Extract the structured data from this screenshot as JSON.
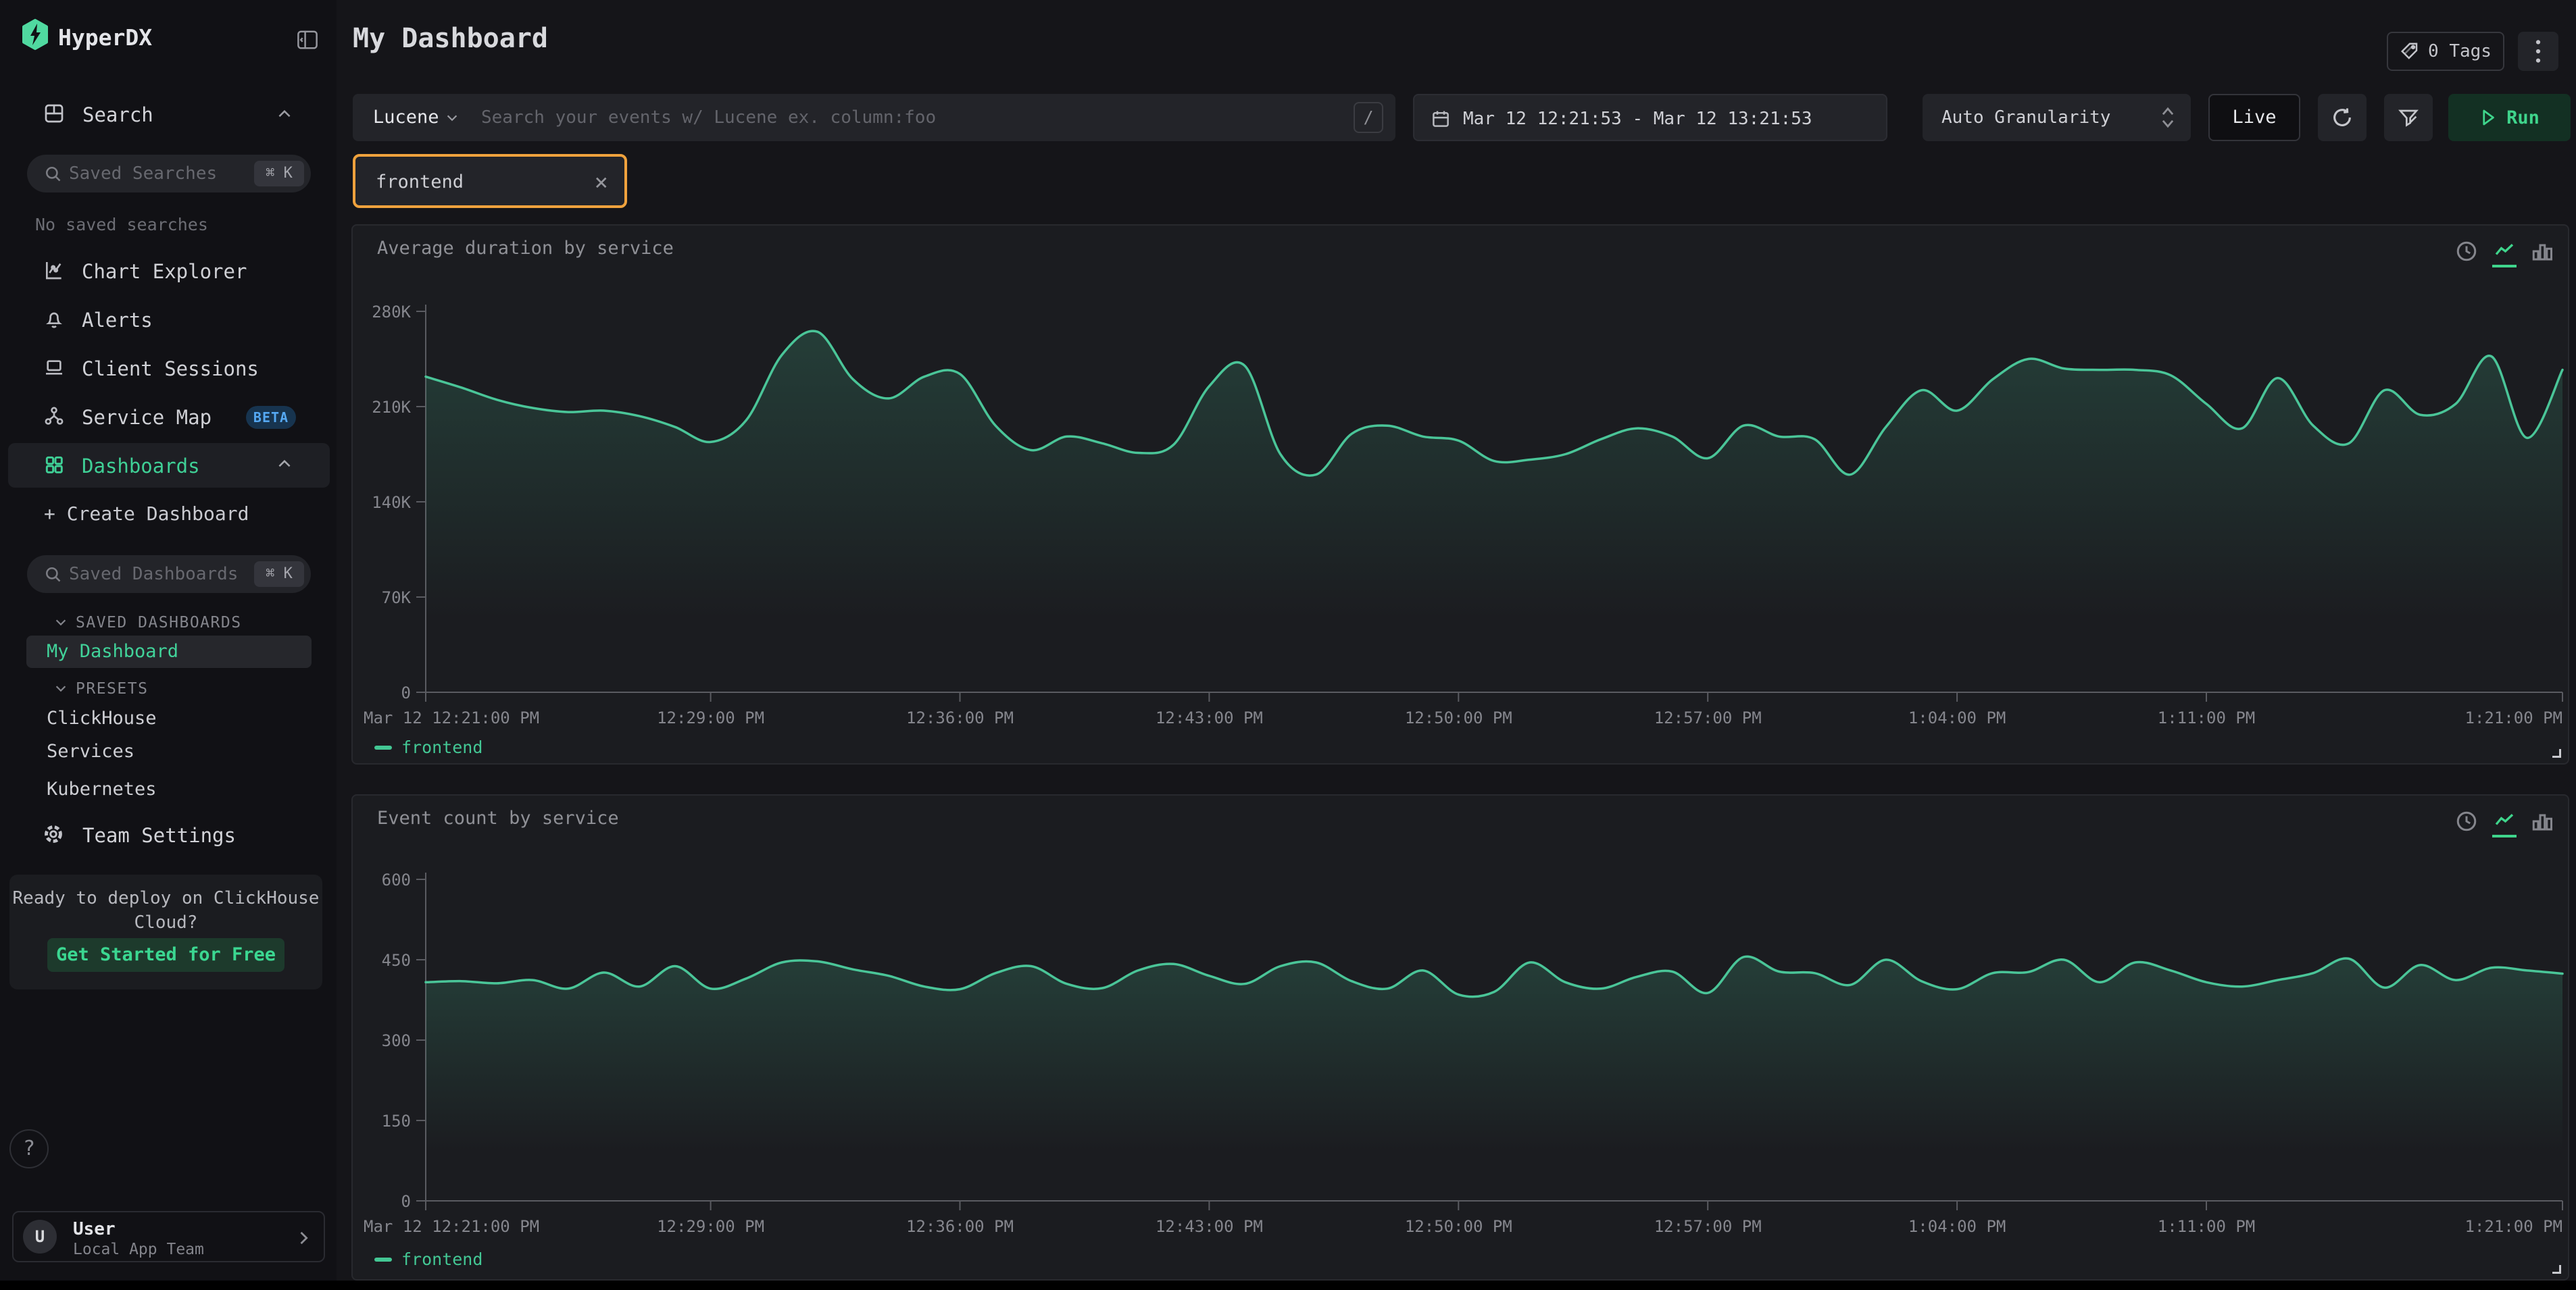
{
  "colors": {
    "logo_green": "#50d9a0",
    "accent_green": "#3fd096",
    "line_green": "#4ac598",
    "chip_border": "#efa23d",
    "beta_blue": "#55a8f2",
    "panel_bg": "#1b1c20",
    "control_bg": "#232429"
  },
  "sidebar": {
    "logo": "HyperDX",
    "search_section": "Search",
    "saved_searches_placeholder": "Saved Searches",
    "shortcut_hint": "⌘ K",
    "no_saved": "No saved searches",
    "nav": {
      "chart_explorer": "Chart Explorer",
      "alerts": "Alerts",
      "client_sessions": "Client Sessions",
      "service_map": "Service Map",
      "beta_badge": "BETA",
      "dashboards": "Dashboards"
    },
    "create_dashboard": "+ Create Dashboard",
    "saved_dashboards_placeholder": "Saved Dashboards",
    "saved_dashboards_header": "SAVED DASHBOARDS",
    "my_dashboard": "My Dashboard",
    "presets_header": "PRESETS",
    "presets": [
      "ClickHouse",
      "Services",
      "Kubernetes"
    ],
    "team_settings": "Team Settings",
    "promo": {
      "line1": "Ready to deploy on ClickHouse",
      "line2": "Cloud?",
      "cta": "Get Started for Free"
    },
    "help": "?",
    "user": {
      "avatar": "U",
      "name": "User",
      "team": "Local App Team"
    }
  },
  "header": {
    "title": "My Dashboard",
    "tags_label": "0 Tags"
  },
  "filters": {
    "language": "Lucene",
    "search_placeholder": "Search your events w/ Lucene ex. column:foo",
    "slash": "/",
    "time_range": "Mar 12 12:21:53 - Mar 12 13:21:53",
    "granularity": "Auto Granularity",
    "live": "Live",
    "run": "Run",
    "chip": "frontend",
    "chip_close": "×"
  },
  "chart_data": [
    {
      "type": "line",
      "title": "Average duration by service",
      "xlabel": "",
      "ylabel": "",
      "ylim": [
        0,
        280000
      ],
      "grid": false,
      "legend_position": "bottom",
      "y_ticks": [
        {
          "value": 0,
          "label": "0"
        },
        {
          "value": 70000,
          "label": "70K"
        },
        {
          "value": 140000,
          "label": "140K"
        },
        {
          "value": 210000,
          "label": "210K"
        },
        {
          "value": 280000,
          "label": "280K"
        }
      ],
      "x_range_minutes": [
        0,
        60
      ],
      "x_ticks": [
        {
          "label": "Mar 12 12:21:00 PM",
          "min": 0,
          "align": "start"
        },
        {
          "label": "12:29:00 PM",
          "min": 8
        },
        {
          "label": "12:36:00 PM",
          "min": 15
        },
        {
          "label": "12:43:00 PM",
          "min": 22
        },
        {
          "label": "12:50:00 PM",
          "min": 29
        },
        {
          "label": "12:57:00 PM",
          "min": 36
        },
        {
          "label": "1:04:00 PM",
          "min": 43
        },
        {
          "label": "1:11:00 PM",
          "min": 50
        },
        {
          "label": "1:21:00 PM",
          "min": 60,
          "align": "end"
        }
      ],
      "series": [
        {
          "name": "frontend",
          "color": "#4ac598",
          "values": [
            232000,
            224000,
            215000,
            209000,
            206000,
            207000,
            203000,
            195000,
            184000,
            200000,
            248000,
            265000,
            230000,
            216000,
            232000,
            234000,
            196000,
            178000,
            188000,
            183000,
            176000,
            182000,
            225000,
            240000,
            175000,
            160000,
            190000,
            196000,
            188000,
            185000,
            170000,
            171000,
            175000,
            186000,
            194000,
            188000,
            172000,
            196000,
            188000,
            186000,
            160000,
            195000,
            222000,
            207000,
            230000,
            245000,
            238000,
            237000,
            237000,
            233000,
            212000,
            194000,
            231000,
            196000,
            183000,
            222000,
            204000,
            212000,
            247000,
            187000,
            237000
          ]
        }
      ]
    },
    {
      "type": "line",
      "title": "Event count by service",
      "xlabel": "",
      "ylabel": "",
      "ylim": [
        0,
        600
      ],
      "grid": false,
      "legend_position": "bottom",
      "y_ticks": [
        {
          "value": 0,
          "label": "0"
        },
        {
          "value": 150,
          "label": "150"
        },
        {
          "value": 300,
          "label": "300"
        },
        {
          "value": 450,
          "label": "450"
        },
        {
          "value": 600,
          "label": "600"
        }
      ],
      "x_range_minutes": [
        0,
        60
      ],
      "x_ticks": [
        {
          "label": "Mar 12 12:21:00 PM",
          "min": 0,
          "align": "start"
        },
        {
          "label": "12:29:00 PM",
          "min": 8
        },
        {
          "label": "12:36:00 PM",
          "min": 15
        },
        {
          "label": "12:43:00 PM",
          "min": 22
        },
        {
          "label": "12:50:00 PM",
          "min": 29
        },
        {
          "label": "12:57:00 PM",
          "min": 36
        },
        {
          "label": "1:04:00 PM",
          "min": 43
        },
        {
          "label": "1:11:00 PM",
          "min": 50
        },
        {
          "label": "1:21:00 PM",
          "min": 60,
          "align": "end"
        }
      ],
      "series": [
        {
          "name": "frontend",
          "color": "#4ac598",
          "values": [
            408,
            410,
            406,
            412,
            396,
            426,
            400,
            438,
            396,
            415,
            445,
            447,
            432,
            420,
            400,
            395,
            425,
            438,
            405,
            397,
            430,
            442,
            420,
            405,
            438,
            445,
            410,
            396,
            430,
            385,
            390,
            445,
            408,
            396,
            418,
            428,
            388,
            455,
            428,
            425,
            403,
            450,
            410,
            395,
            425,
            427,
            450,
            408,
            445,
            430,
            408,
            400,
            412,
            425,
            452,
            398,
            440,
            412,
            435,
            430,
            424
          ]
        }
      ]
    }
  ]
}
